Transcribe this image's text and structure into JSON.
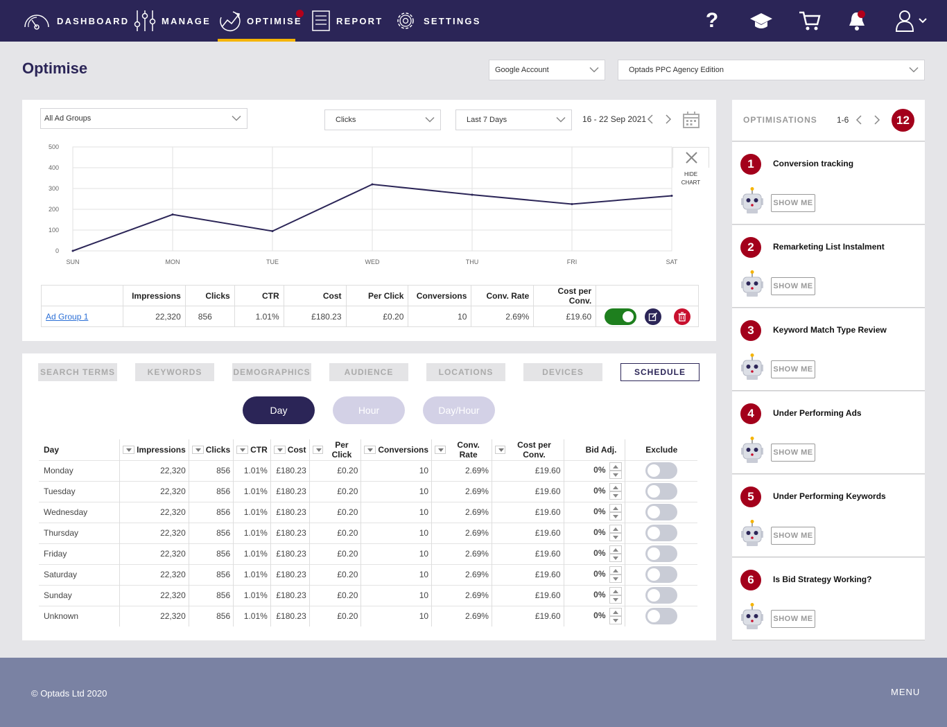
{
  "nav": {
    "items": [
      {
        "label": "DASHBOARD",
        "icon": "speedometer-icon"
      },
      {
        "label": "MANAGE",
        "icon": "sliders-icon"
      },
      {
        "label": "OPTIMISE",
        "icon": "trend-chart-icon"
      },
      {
        "label": "REPORT",
        "icon": "document-icon"
      },
      {
        "label": "SETTINGS",
        "icon": "gear-icon"
      }
    ],
    "active": "OPTIMISE",
    "right_icons": [
      "help-icon",
      "graduation-cap-icon",
      "cart-icon",
      "bell-icon",
      "user-icon"
    ],
    "help_glyph": "?"
  },
  "page": {
    "title": "Optimise",
    "account_select": "Google Account",
    "edition_select": "Optads PPC Agency Edition"
  },
  "chart_panel": {
    "adgroup_select": "All Ad Groups",
    "metric_select": "Clicks",
    "range_select": "Last 7 Days",
    "date_range": "16 - 22 Sep 2021",
    "hide_chart_label_1": "HIDE",
    "hide_chart_label_2": "CHART"
  },
  "chart_data": {
    "type": "line",
    "categories": [
      "SUN",
      "MON",
      "TUE",
      "WED",
      "THU",
      "FRI",
      "SAT"
    ],
    "series": [
      {
        "values": [
          0,
          175,
          95,
          320,
          270,
          225,
          265
        ]
      }
    ],
    "y_ticks": [
      "500",
      "400",
      "300",
      "200",
      "100",
      "0"
    ],
    "ylim": [
      0,
      500
    ],
    "grid": true,
    "line_color": "#2b2557"
  },
  "summary_table": {
    "headers": [
      "Impressions",
      "Clicks",
      "CTR",
      "Cost",
      "Per Click",
      "Conversions",
      "Conv. Rate",
      "Cost per Conv."
    ],
    "row": {
      "name": "Ad Group 1",
      "values": [
        "22,320",
        "856",
        "1.01%",
        "£180.23",
        "£0.20",
        "10",
        "2.69%",
        "£19.60"
      ],
      "enabled": true
    }
  },
  "tabs": [
    "SEARCH TERMS",
    "KEYWORDS",
    "DEMOGRAPHICS",
    "AUDIENCE",
    "LOCATIONS",
    "DEVICES",
    "SCHEDULE"
  ],
  "active_tab": "SCHEDULE",
  "pills": [
    "Day",
    "Hour",
    "Day/Hour"
  ],
  "active_pill": "Day",
  "day_table": {
    "headers": [
      "Day",
      "Impressions",
      "Clicks",
      "CTR",
      "Cost",
      "Per Click",
      "Conversions",
      "Conv. Rate",
      "Cost per Conv.",
      "Bid Adj.",
      "Exclude"
    ],
    "rows": [
      {
        "day": "Monday",
        "values": [
          "22,320",
          "856",
          "1.01%",
          "£180.23",
          "£0.20",
          "10",
          "2.69%",
          "£19.60"
        ],
        "bid": "0%"
      },
      {
        "day": "Tuesday",
        "values": [
          "22,320",
          "856",
          "1.01%",
          "£180.23",
          "£0.20",
          "10",
          "2.69%",
          "£19.60"
        ],
        "bid": "0%"
      },
      {
        "day": "Wednesday",
        "values": [
          "22,320",
          "856",
          "1.01%",
          "£180.23",
          "£0.20",
          "10",
          "2.69%",
          "£19.60"
        ],
        "bid": "0%"
      },
      {
        "day": "Thursday",
        "values": [
          "22,320",
          "856",
          "1.01%",
          "£180.23",
          "£0.20",
          "10",
          "2.69%",
          "£19.60"
        ],
        "bid": "0%"
      },
      {
        "day": "Friday",
        "values": [
          "22,320",
          "856",
          "1.01%",
          "£180.23",
          "£0.20",
          "10",
          "2.69%",
          "£19.60"
        ],
        "bid": "0%"
      },
      {
        "day": "Saturday",
        "values": [
          "22,320",
          "856",
          "1.01%",
          "£180.23",
          "£0.20",
          "10",
          "2.69%",
          "£19.60"
        ],
        "bid": "0%"
      },
      {
        "day": "Sunday",
        "values": [
          "22,320",
          "856",
          "1.01%",
          "£180.23",
          "£0.20",
          "10",
          "2.69%",
          "£19.60"
        ],
        "bid": "0%"
      },
      {
        "day": "Unknown",
        "values": [
          "22,320",
          "856",
          "1.01%",
          "£180.23",
          "£0.20",
          "10",
          "2.69%",
          "£19.60"
        ],
        "bid": "0%"
      }
    ]
  },
  "optimisations": {
    "title": "OPTIMISATIONS",
    "range": "1-6",
    "count": "12",
    "show_me_label": "SHOW ME",
    "items": [
      {
        "num": "1",
        "title": "Conversion tracking"
      },
      {
        "num": "2",
        "title": "Remarketing List Instalment"
      },
      {
        "num": "3",
        "title": "Keyword Match Type Review"
      },
      {
        "num": "4",
        "title": "Under Performing Ads"
      },
      {
        "num": "5",
        "title": "Under Performing Keywords"
      },
      {
        "num": "6",
        "title": "Is Bid Strategy Working?"
      }
    ]
  },
  "footer": {
    "copyright": "© Optads Ltd 2020",
    "menu": "MENU"
  },
  "colors": {
    "brand": "#2b2557",
    "accent": "#f5b400",
    "danger": "#a3001b",
    "success": "#1e7f1e"
  }
}
